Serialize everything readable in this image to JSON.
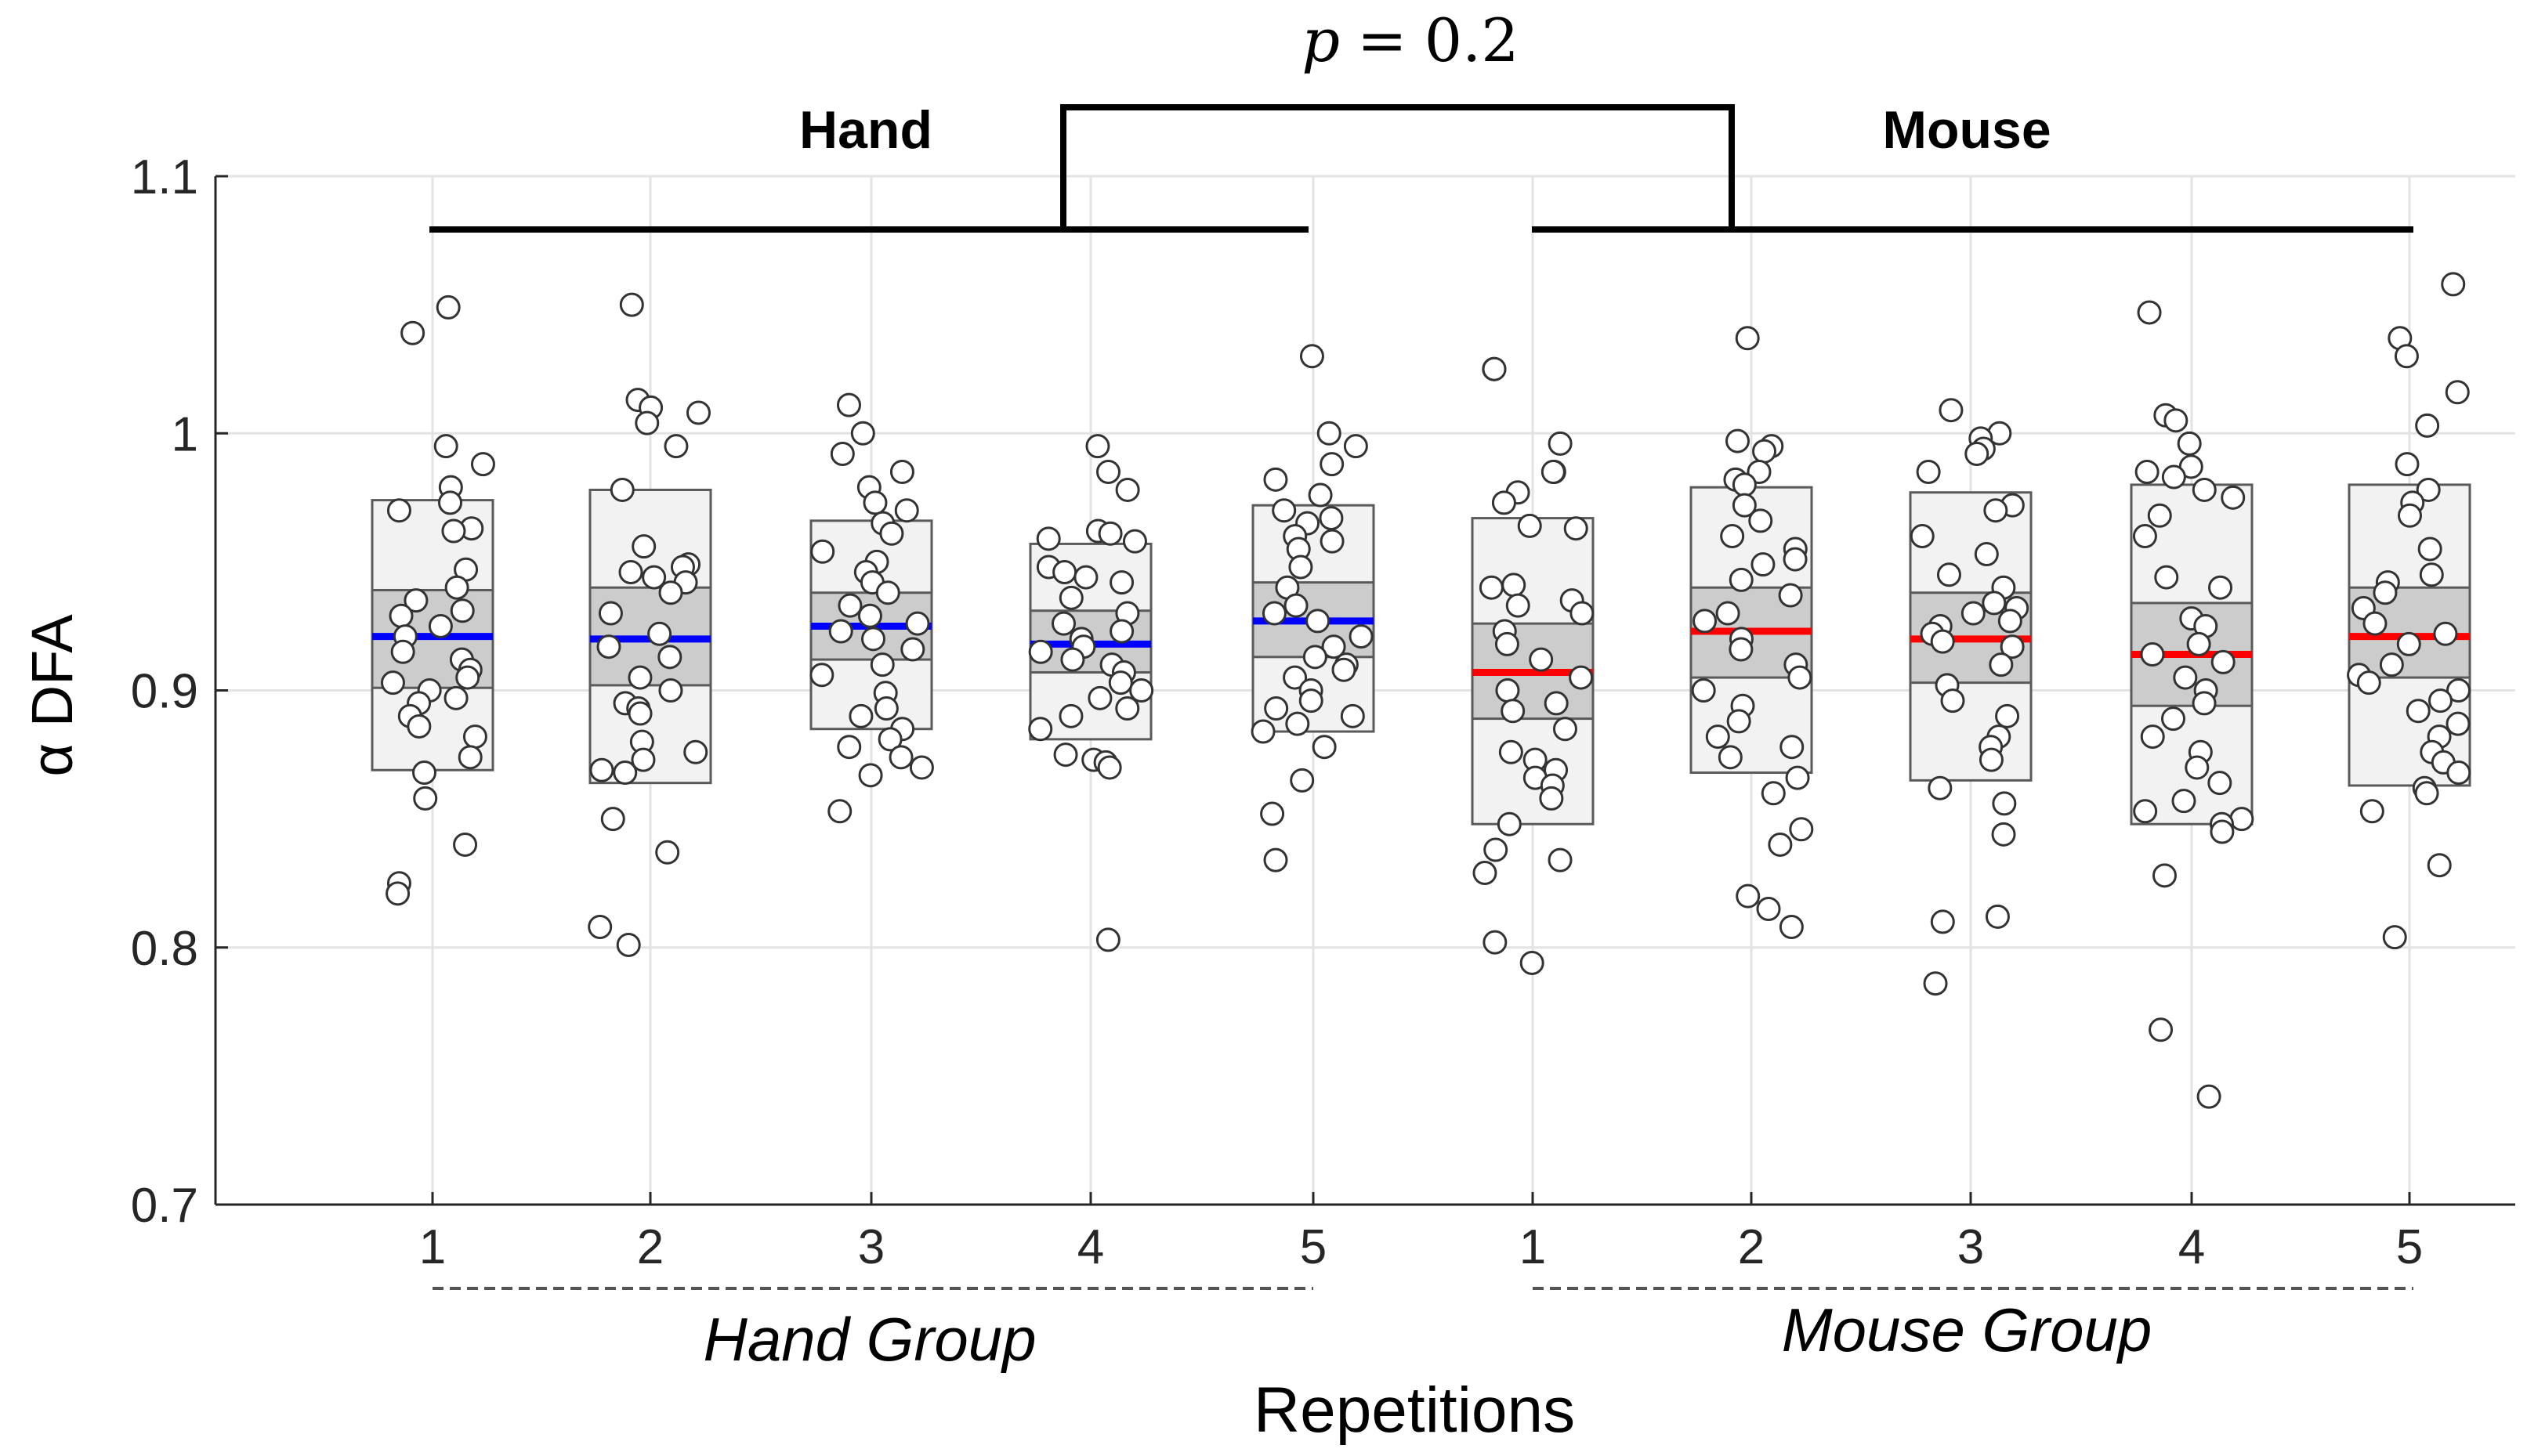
{
  "chart_data": {
    "type": "scatter",
    "ylabel": "α DFA",
    "xlabel": "Repetitions",
    "ylim": [
      0.7,
      1.1
    ],
    "yticks": [
      0.7,
      0.8,
      0.9,
      1,
      1.1
    ],
    "ytick_labels": [
      "0.7",
      "0.8",
      "0.9",
      "1",
      "1.1"
    ],
    "grid": true,
    "group_labels": [
      "Hand Group",
      "Mouse Group"
    ],
    "bracket_labels": [
      "Hand",
      "Mouse"
    ],
    "p_label": {
      "var": "p",
      "op": "=",
      "value": "0.2"
    },
    "line_colors": {
      "Hand Group": "#0000ff",
      "Mouse Group": "#ff0000"
    },
    "categories": [
      {
        "group": "Hand Group",
        "label": "1",
        "mean": 0.921,
        "ci": [
          0.901,
          0.939
        ],
        "sd": [
          0.869,
          0.974
        ],
        "points": [
          1.049,
          1.039,
          0.995,
          0.988,
          0.979,
          0.973,
          0.97,
          0.963,
          0.962,
          0.947,
          0.94,
          0.935,
          0.931,
          0.929,
          0.925,
          0.921,
          0.915,
          0.912,
          0.908,
          0.905,
          0.903,
          0.9,
          0.897,
          0.895,
          0.89,
          0.886,
          0.882,
          0.874,
          0.868,
          0.858,
          0.84,
          0.825,
          0.821
        ]
      },
      {
        "group": "Hand Group",
        "label": "2",
        "mean": 0.92,
        "ci": [
          0.902,
          0.94
        ],
        "sd": [
          0.864,
          0.978
        ],
        "points": [
          1.05,
          1.013,
          1.01,
          1.008,
          1.004,
          0.995,
          0.978,
          0.956,
          0.949,
          0.948,
          0.946,
          0.944,
          0.942,
          0.938,
          0.93,
          0.922,
          0.917,
          0.913,
          0.905,
          0.9,
          0.895,
          0.893,
          0.891,
          0.88,
          0.876,
          0.873,
          0.869,
          0.868,
          0.85,
          0.837,
          0.808,
          0.801
        ]
      },
      {
        "group": "Hand Group",
        "label": "3",
        "mean": 0.925,
        "ci": [
          0.912,
          0.938
        ],
        "sd": [
          0.885,
          0.966
        ],
        "points": [
          1.011,
          1.0,
          0.992,
          0.985,
          0.979,
          0.973,
          0.97,
          0.965,
          0.961,
          0.954,
          0.95,
          0.946,
          0.942,
          0.938,
          0.933,
          0.929,
          0.926,
          0.923,
          0.92,
          0.916,
          0.91,
          0.906,
          0.899,
          0.893,
          0.89,
          0.885,
          0.881,
          0.878,
          0.874,
          0.87,
          0.867,
          0.853
        ]
      },
      {
        "group": "Hand Group",
        "label": "4",
        "mean": 0.918,
        "ci": [
          0.907,
          0.931
        ],
        "sd": [
          0.881,
          0.957
        ],
        "points": [
          0.995,
          0.985,
          0.978,
          0.962,
          0.961,
          0.959,
          0.958,
          0.948,
          0.946,
          0.944,
          0.942,
          0.936,
          0.93,
          0.926,
          0.923,
          0.92,
          0.917,
          0.915,
          0.912,
          0.91,
          0.907,
          0.903,
          0.9,
          0.897,
          0.893,
          0.89,
          0.885,
          0.875,
          0.873,
          0.872,
          0.87,
          0.803
        ]
      },
      {
        "group": "Hand Group",
        "label": "5",
        "mean": 0.927,
        "ci": [
          0.913,
          0.942
        ],
        "sd": [
          0.884,
          0.972
        ],
        "points": [
          1.03,
          1.0,
          0.995,
          0.988,
          0.982,
          0.976,
          0.97,
          0.967,
          0.965,
          0.96,
          0.958,
          0.955,
          0.948,
          0.94,
          0.933,
          0.93,
          0.927,
          0.921,
          0.917,
          0.913,
          0.91,
          0.908,
          0.905,
          0.9,
          0.896,
          0.893,
          0.89,
          0.887,
          0.884,
          0.878,
          0.865,
          0.852,
          0.834
        ]
      },
      {
        "group": "Mouse Group",
        "label": "1",
        "mean": 0.907,
        "ci": [
          0.889,
          0.926
        ],
        "sd": [
          0.848,
          0.967
        ],
        "points": [
          1.025,
          1.025,
          0.996,
          0.985,
          0.985,
          0.977,
          0.973,
          0.964,
          0.963,
          0.941,
          0.94,
          0.935,
          0.933,
          0.93,
          0.923,
          0.918,
          0.912,
          0.905,
          0.9,
          0.895,
          0.892,
          0.885,
          0.876,
          0.873,
          0.869,
          0.866,
          0.863,
          0.858,
          0.848,
          0.838,
          0.834,
          0.829,
          0.802,
          0.794
        ]
      },
      {
        "group": "Mouse Group",
        "label": "2",
        "mean": 0.923,
        "ci": [
          0.905,
          0.94
        ],
        "sd": [
          0.868,
          0.979
        ],
        "points": [
          1.037,
          0.997,
          0.995,
          0.993,
          0.985,
          0.982,
          0.98,
          0.972,
          0.966,
          0.96,
          0.955,
          0.951,
          0.949,
          0.943,
          0.937,
          0.93,
          0.927,
          0.92,
          0.916,
          0.91,
          0.905,
          0.9,
          0.894,
          0.888,
          0.882,
          0.878,
          0.874,
          0.866,
          0.86,
          0.846,
          0.84,
          0.82,
          0.815,
          0.808
        ]
      },
      {
        "group": "Mouse Group",
        "label": "3",
        "mean": 0.92,
        "ci": [
          0.903,
          0.938
        ],
        "sd": [
          0.865,
          0.977
        ],
        "points": [
          1.009,
          1.0,
          0.998,
          0.994,
          0.992,
          0.985,
          0.972,
          0.97,
          0.96,
          0.953,
          0.945,
          0.94,
          0.934,
          0.932,
          0.93,
          0.927,
          0.925,
          0.922,
          0.919,
          0.917,
          0.91,
          0.902,
          0.896,
          0.89,
          0.882,
          0.878,
          0.873,
          0.862,
          0.856,
          0.844,
          0.812,
          0.81,
          0.786
        ]
      },
      {
        "group": "Mouse Group",
        "label": "4",
        "mean": 0.914,
        "ci": [
          0.894,
          0.934
        ],
        "sd": [
          0.848,
          0.98
        ],
        "points": [
          1.047,
          1.007,
          1.005,
          0.996,
          0.987,
          0.985,
          0.983,
          0.978,
          0.975,
          0.968,
          0.96,
          0.944,
          0.94,
          0.928,
          0.925,
          0.918,
          0.914,
          0.911,
          0.905,
          0.9,
          0.895,
          0.889,
          0.882,
          0.876,
          0.87,
          0.864,
          0.857,
          0.853,
          0.85,
          0.848,
          0.845,
          0.828,
          0.768,
          0.742
        ]
      },
      {
        "group": "Mouse Group",
        "label": "5",
        "mean": 0.921,
        "ci": [
          0.905,
          0.94
        ],
        "sd": [
          0.863,
          0.98
        ],
        "points": [
          1.058,
          1.037,
          1.03,
          1.016,
          1.003,
          0.988,
          0.978,
          0.973,
          0.968,
          0.955,
          0.945,
          0.942,
          0.938,
          0.932,
          0.926,
          0.922,
          0.918,
          0.91,
          0.906,
          0.903,
          0.9,
          0.896,
          0.892,
          0.887,
          0.882,
          0.876,
          0.872,
          0.868,
          0.862,
          0.86,
          0.853,
          0.832,
          0.804
        ]
      }
    ]
  }
}
